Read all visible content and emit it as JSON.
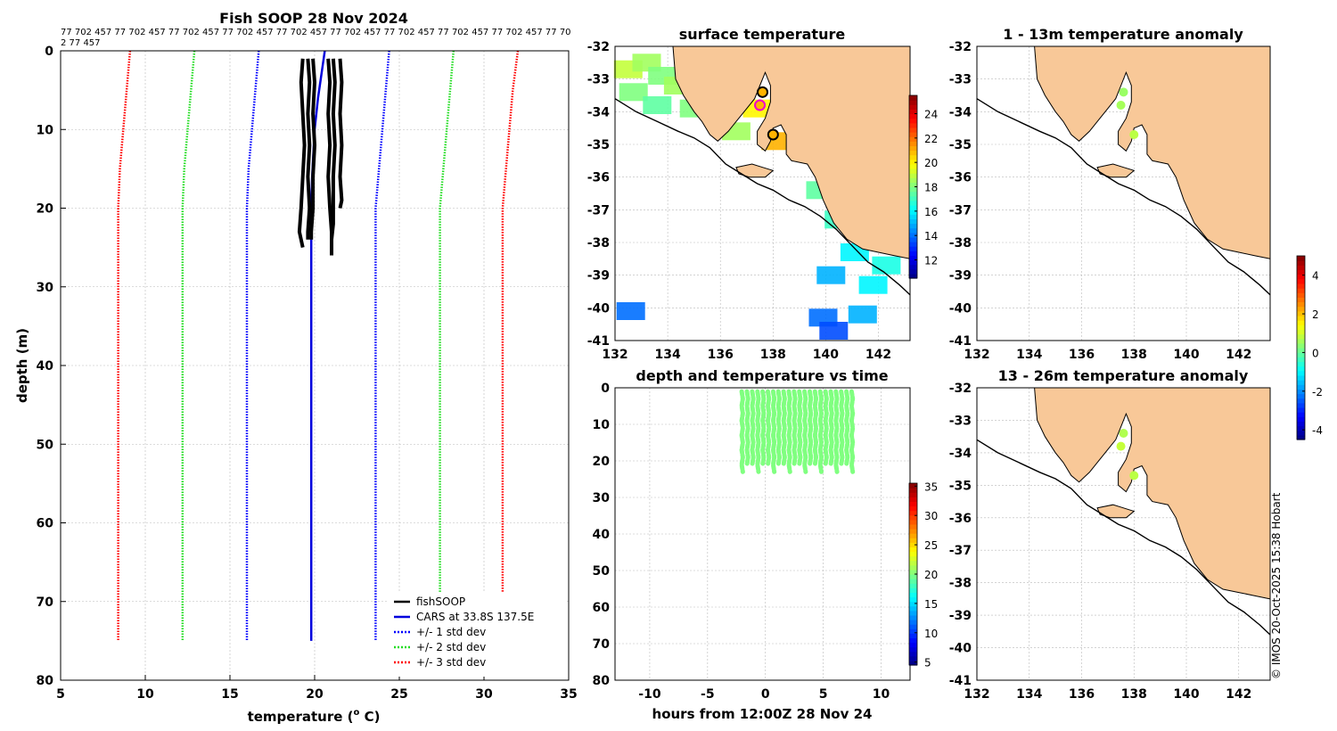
{
  "header_values": "77 702 457 77 702 457 77 702 457 77 702 457 77 702 457 77 702 457 77 702 457 77 702 457 77 702 457 77 70",
  "header_values_2": "2 77 457",
  "copyright": "© IMOS 20-Oct-2025 15:38 Hobart",
  "colors": {
    "land": "#f8c898",
    "fish": "#000000",
    "cars": "#0000dd",
    "sd1": "#0000ff",
    "sd2": "#22dd22",
    "sd3": "#ff0000"
  },
  "chart_data": [
    {
      "id": "profile",
      "type": "line",
      "title": "Fish SOOP 28 Nov 2024",
      "xlabel": "temperature (",
      "xlabel_sup": "o",
      "xlabel_suffix": " C)",
      "ylabel": "depth (m)",
      "xlim": [
        5,
        35
      ],
      "ylim": [
        80,
        0
      ],
      "xticks": [
        "5",
        "10",
        "15",
        "20",
        "25",
        "30",
        "35"
      ],
      "yticks": [
        "0",
        "10",
        "20",
        "30",
        "40",
        "50",
        "60",
        "70",
        "80"
      ],
      "legend": [
        "fishSOOP",
        "CARS at 33.8S 137.5E",
        "+/- 1 std dev",
        "+/- 2 std dev",
        "+/- 3 std dev"
      ],
      "series": [
        {
          "name": "CARS at 33.8S 137.5E",
          "x": [
            20.6,
            20.4,
            20.2,
            20.0,
            19.85,
            19.8,
            19.8,
            19.8,
            19.8
          ],
          "y": [
            0,
            3,
            6,
            10,
            16,
            20,
            30,
            50,
            75
          ]
        },
        {
          "name": "-1 std",
          "x": [
            16.7,
            16.5,
            16.3,
            16.1,
            16.0,
            16.0,
            16.0,
            16.0,
            16.0
          ],
          "y": [
            0,
            5,
            10,
            15,
            20,
            30,
            50,
            70,
            75
          ]
        },
        {
          "name": "+1 std",
          "x": [
            24.4,
            24.2,
            24.0,
            23.8,
            23.6,
            23.6,
            23.6,
            23.6,
            23.6
          ],
          "y": [
            0,
            5,
            10,
            15,
            20,
            30,
            50,
            70,
            75
          ]
        },
        {
          "name": "-2 std",
          "x": [
            12.9,
            12.7,
            12.5,
            12.3,
            12.2,
            12.2,
            12.2,
            12.2,
            12.2
          ],
          "y": [
            0,
            5,
            10,
            15,
            20,
            30,
            50,
            70,
            75
          ]
        },
        {
          "name": "+2 std",
          "x": [
            28.2,
            28.0,
            27.8,
            27.6,
            27.4,
            27.4,
            27.4,
            27.4,
            27.4
          ],
          "y": [
            0,
            5,
            10,
            15,
            20,
            30,
            50,
            70,
            75
          ]
        },
        {
          "name": "-3 std",
          "x": [
            9.1,
            8.9,
            8.7,
            8.5,
            8.4,
            8.4,
            8.4,
            8.4,
            8.4
          ],
          "y": [
            0,
            5,
            10,
            15,
            20,
            30,
            50,
            70,
            75
          ]
        },
        {
          "name": "+3 std",
          "x": [
            32.0,
            31.7,
            31.5,
            31.3,
            31.1,
            31.1,
            31.1,
            31.1,
            31.1
          ],
          "y": [
            0,
            5,
            10,
            15,
            20,
            30,
            50,
            70,
            75
          ]
        }
      ],
      "fish_casts": [
        {
          "x": [
            19.3,
            19.2,
            19.3,
            19.4,
            19.3,
            19.2,
            19.1,
            19.3
          ],
          "y": [
            1,
            4,
            8,
            12,
            16,
            20,
            23,
            25
          ]
        },
        {
          "x": [
            19.6,
            19.7,
            19.6,
            19.7,
            19.6,
            19.7,
            19.6,
            19.6
          ],
          "y": [
            1,
            4,
            8,
            12,
            16,
            20,
            23,
            24
          ]
        },
        {
          "x": [
            19.9,
            20.0,
            19.9,
            20.0,
            19.9,
            19.9,
            19.8,
            19.8
          ],
          "y": [
            1,
            4,
            8,
            12,
            16,
            20,
            23,
            24
          ]
        },
        {
          "x": [
            20.8,
            20.9,
            20.8,
            20.9,
            20.8,
            20.9,
            21.0,
            21.0
          ],
          "y": [
            1,
            4,
            8,
            12,
            16,
            20,
            23,
            26
          ]
        },
        {
          "x": [
            21.1,
            21.2,
            21.1,
            21.2,
            21.1,
            21.1,
            21.1,
            21.0
          ],
          "y": [
            1,
            4,
            8,
            12,
            16,
            20,
            22,
            24
          ]
        },
        {
          "x": [
            21.5,
            21.6,
            21.5,
            21.6,
            21.5,
            21.6,
            21.5
          ],
          "y": [
            1,
            4,
            8,
            12,
            16,
            19,
            20
          ]
        }
      ]
    },
    {
      "id": "sst",
      "type": "heatmap",
      "title": "surface temperature",
      "xlim": [
        132,
        143.2
      ],
      "ylim": [
        -41,
        -32
      ],
      "xticks": [
        "132",
        "134",
        "136",
        "138",
        "140",
        "142"
      ],
      "yticks": [
        "-32",
        "-33",
        "-34",
        "-35",
        "-36",
        "-37",
        "-38",
        "-39",
        "-40",
        "-41"
      ],
      "colorbar_ticks": [
        "12",
        "14",
        "16",
        "18",
        "20",
        "22",
        "24"
      ],
      "clim": [
        10.5,
        25.5
      ],
      "cells": [
        {
          "lon": 132.5,
          "lat": -32.7,
          "t": 19
        },
        {
          "lon": 133.2,
          "lat": -32.5,
          "t": 18.5
        },
        {
          "lon": 133.8,
          "lat": -32.9,
          "t": 18
        },
        {
          "lon": 134.4,
          "lat": -33.2,
          "t": 18.5
        },
        {
          "lon": 132.7,
          "lat": -33.4,
          "t": 18
        },
        {
          "lon": 133.6,
          "lat": -33.8,
          "t": 17.5
        },
        {
          "lon": 135.0,
          "lat": -33.9,
          "t": 18
        },
        {
          "lon": 136.6,
          "lat": -34.6,
          "t": 18.5
        },
        {
          "lon": 137.4,
          "lat": -33.9,
          "t": 20
        },
        {
          "lon": 138.1,
          "lat": -34.9,
          "t": 21
        },
        {
          "lon": 139.8,
          "lat": -36.4,
          "t": 17.5
        },
        {
          "lon": 140.5,
          "lat": -37.3,
          "t": 17
        },
        {
          "lon": 141.1,
          "lat": -38.3,
          "t": 16
        },
        {
          "lon": 142.3,
          "lat": -38.7,
          "t": 16.5
        },
        {
          "lon": 140.2,
          "lat": -39.0,
          "t": 15
        },
        {
          "lon": 141.8,
          "lat": -39.3,
          "t": 16
        },
        {
          "lon": 132.6,
          "lat": -40.1,
          "t": 14
        },
        {
          "lon": 139.9,
          "lat": -40.3,
          "t": 14
        },
        {
          "lon": 141.4,
          "lat": -40.2,
          "t": 15
        },
        {
          "lon": 140.3,
          "lat": -40.7,
          "t": 13.5
        }
      ],
      "stations": [
        {
          "lon": 137.6,
          "lat": -33.4,
          "t": 21,
          "ring": "#000000"
        },
        {
          "lon": 137.5,
          "lat": -33.8,
          "t": 21,
          "ring": "#ee00cc"
        },
        {
          "lon": 138.0,
          "lat": -34.7,
          "t": 21,
          "ring": "#000000"
        }
      ]
    },
    {
      "id": "anom1",
      "type": "scatter",
      "title": "1 - 13m temperature anomaly",
      "xlim": [
        132,
        143.2
      ],
      "ylim": [
        -41,
        -32
      ],
      "xticks": [
        "132",
        "134",
        "136",
        "138",
        "140",
        "142"
      ],
      "yticks": [
        "-32",
        "-33",
        "-34",
        "-35",
        "-36",
        "-37",
        "-38",
        "-39",
        "-40",
        "-41"
      ],
      "points": [
        {
          "lon": 137.6,
          "lat": -33.4,
          "v": 0.5
        },
        {
          "lon": 137.5,
          "lat": -33.8,
          "v": 0.6
        },
        {
          "lon": 138.0,
          "lat": -34.7,
          "v": 0.8
        }
      ]
    },
    {
      "id": "anom2",
      "type": "scatter",
      "title": "13 - 26m temperature anomaly",
      "xlim": [
        132,
        143.2
      ],
      "ylim": [
        -41,
        -32
      ],
      "xticks": [
        "132",
        "134",
        "136",
        "138",
        "140",
        "142"
      ],
      "yticks": [
        "-32",
        "-33",
        "-34",
        "-35",
        "-36",
        "-37",
        "-38",
        "-39",
        "-40",
        "-41"
      ],
      "colorbar_ticks": [
        "4",
        "2",
        "0",
        "-2",
        "-4"
      ],
      "clim": [
        -4.5,
        5
      ],
      "points": [
        {
          "lon": 137.6,
          "lat": -33.4,
          "v": 0.7
        },
        {
          "lon": 137.5,
          "lat": -33.8,
          "v": 0.9
        },
        {
          "lon": 138.0,
          "lat": -34.7,
          "v": 0.8
        }
      ]
    },
    {
      "id": "time",
      "type": "scatter",
      "title": "depth and temperature vs time",
      "xlabel": "hours from 12:00Z 28 Nov 24",
      "xlim": [
        -13,
        12.5
      ],
      "ylim": [
        80,
        0
      ],
      "xticks": [
        "-10",
        "-5",
        "0",
        "5",
        "10"
      ],
      "yticks": [
        "0",
        "10",
        "20",
        "30",
        "40",
        "50",
        "60",
        "70",
        "80"
      ],
      "colorbar_ticks": [
        "35",
        "30",
        "25",
        "20",
        "15",
        "10",
        "5"
      ],
      "clim": [
        4.5,
        35.5
      ],
      "time_range": [
        -2,
        7.5
      ],
      "n_casts": 22,
      "depth_range": [
        1,
        24
      ],
      "temp": 20
    }
  ]
}
